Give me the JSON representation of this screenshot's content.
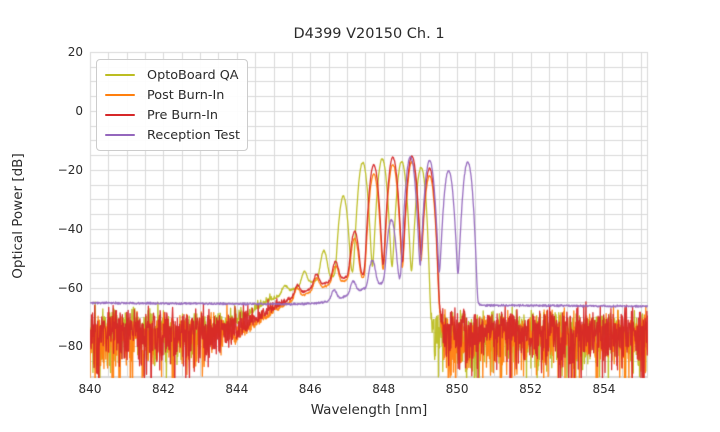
{
  "chart_data": {
    "type": "line",
    "title": "D4399 V20150 Ch. 1",
    "xlabel": "Wavelength [nm]",
    "ylabel": "Optical Power [dB]",
    "xlim": [
      840,
      855.2
    ],
    "ylim": [
      -90.7,
      20
    ],
    "xticks": [
      840,
      842,
      844,
      846,
      848,
      850,
      852,
      854
    ],
    "yticks": [
      20,
      0,
      -20,
      -40,
      -60,
      -80
    ],
    "grid": {
      "x_step_nm": 0.5,
      "y_step_db": 5,
      "color": "#d9d9d9",
      "on": true
    },
    "legend_position": "upper left",
    "text_color": "#2b2b2b",
    "background_color": "#ffffff",
    "sample_step_nm": 0.01,
    "peak_sigma_nm": 0.06,
    "series": [
      {
        "name": "OptoBoard QA",
        "color": "#bcbd22",
        "noise_floor_db": -74,
        "pedestal": {
          "center": 847.55,
          "sigma": 1.25,
          "amp_db": -55
        },
        "cutoff": {
          "lambda": 849.2,
          "width": 0.03
        },
        "peaks": [
          [
            845.31,
            -63
          ],
          [
            845.84,
            -56.5
          ],
          [
            846.37,
            -48
          ],
          [
            846.9,
            -29
          ],
          [
            847.43,
            -17.5
          ],
          [
            847.96,
            -16.3
          ],
          [
            848.49,
            -17.2
          ],
          [
            849.02,
            -19.2
          ]
        ]
      },
      {
        "name": "Post Burn-In",
        "color": "#ff7f0e",
        "noise_floor_db": -75.5,
        "pedestal": {
          "center": 847.85,
          "sigma": 1.2,
          "amp_db": -56.5
        },
        "cutoff": {
          "lambda": 849.47,
          "width": 0.03
        },
        "peaks": [
          [
            845.65,
            -63
          ],
          [
            846.17,
            -59
          ],
          [
            846.69,
            -54
          ],
          [
            847.21,
            -43.5
          ],
          [
            847.73,
            -21.5
          ],
          [
            848.25,
            -18.2
          ],
          [
            848.77,
            -17.3
          ],
          [
            849.25,
            -22
          ]
        ]
      },
      {
        "name": "Pre Burn-In",
        "color": "#d62728",
        "noise_floor_db": -73.5,
        "pedestal": {
          "center": 847.85,
          "sigma": 1.2,
          "amp_db": -55.5
        },
        "cutoff": {
          "lambda": 849.47,
          "width": 0.03
        },
        "peaks": [
          [
            845.65,
            -62
          ],
          [
            846.17,
            -57.5
          ],
          [
            846.69,
            -52.5
          ],
          [
            847.21,
            -41
          ],
          [
            847.73,
            -18.3
          ],
          [
            848.25,
            -15.8
          ],
          [
            848.77,
            -15.3
          ],
          [
            849.25,
            -19.5
          ]
        ]
      },
      {
        "name": "Reception Test",
        "color": "#9467bd",
        "baseline_db": -65.2,
        "baseline_slope_db_per_nm": -0.075,
        "noise_amp_db": 0.5,
        "pedestal": {
          "center": 848.6,
          "sigma": 0.85,
          "amp_db": -58
        },
        "cutoff": {
          "lambda": 850.52,
          "width": 0.04
        },
        "peaks": [
          [
            846.65,
            -63.5
          ],
          [
            847.17,
            -60
          ],
          [
            847.69,
            -51.5
          ],
          [
            848.21,
            -37
          ],
          [
            848.73,
            -15.5
          ],
          [
            849.25,
            -16.8
          ],
          [
            849.77,
            -20.3
          ],
          [
            850.29,
            -17.2
          ]
        ]
      }
    ]
  }
}
